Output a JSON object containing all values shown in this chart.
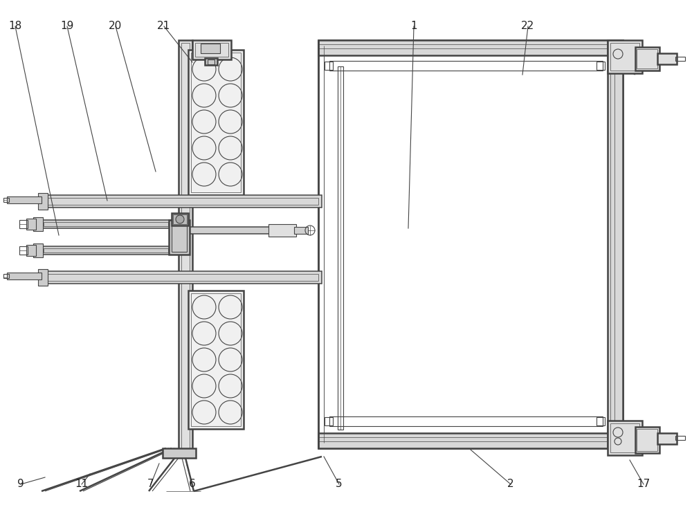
{
  "bg_color": "#ffffff",
  "line_color": "#444444",
  "lw": 0.8,
  "lw_thick": 1.8,
  "lw_thin": 0.5,
  "lw_med": 1.1
}
